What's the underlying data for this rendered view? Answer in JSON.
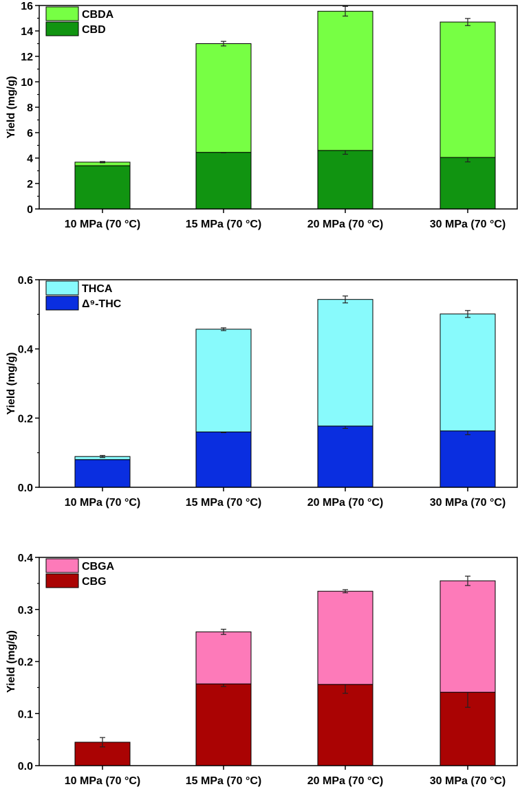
{
  "chart_data": [
    {
      "type": "bar",
      "stacked": true,
      "categories": [
        "10 MPa (70 °C)",
        "15 MPa (70 °C)",
        "20 MPa (70 °C)",
        "30 MPa (70 °C)"
      ],
      "ylabel": "Yield (mg/g)",
      "ylim": [
        0,
        16
      ],
      "yticks": [
        0,
        2,
        4,
        6,
        8,
        10,
        12,
        14,
        16
      ],
      "ytick_labels": [
        "0",
        "2",
        "4",
        "6",
        "8",
        "10",
        "12",
        "14",
        "16"
      ],
      "legend_position": "top-left",
      "series": [
        {
          "name": "CBD",
          "color": "#119411",
          "values": [
            3.4,
            4.45,
            4.6,
            4.05
          ],
          "errors": [
            null,
            0.03,
            0.3,
            0.35
          ]
        },
        {
          "name": "CBDA",
          "color": "#77ff44",
          "values": [
            0.28,
            8.55,
            10.95,
            10.65
          ],
          "errors": [
            0.05,
            0.18,
            0.38,
            0.28
          ]
        }
      ]
    },
    {
      "type": "bar",
      "stacked": true,
      "categories": [
        "10 MPa (70 °C)",
        "15 MPa (70 °C)",
        "20 MPa (70 °C)",
        "30 MPa (70 °C)"
      ],
      "ylabel": "Yield (mg/g)",
      "ylim": [
        0,
        0.6
      ],
      "yticks": [
        0,
        0.2,
        0.4,
        0.6
      ],
      "ytick_labels": [
        "0.0",
        "0.2",
        "0.4",
        "0.6"
      ],
      "legend_position": "top-left",
      "series": [
        {
          "name": "Δ⁹-THC",
          "color": "#0a2ee0",
          "values": [
            0.08,
            0.16,
            0.177,
            0.163
          ],
          "errors": [
            null,
            0.002,
            0.007,
            0.011
          ]
        },
        {
          "name": "THCA",
          "color": "#88fafc",
          "values": [
            0.009,
            0.297,
            0.366,
            0.338
          ],
          "errors": [
            0.003,
            0.004,
            0.01,
            0.01
          ]
        }
      ]
    },
    {
      "type": "bar",
      "stacked": true,
      "categories": [
        "10 MPa (70 °C)",
        "15 MPa (70 °C)",
        "20 MPa (70 °C)",
        "30 MPa (70 °C)"
      ],
      "ylabel": "Yield (mg/g)",
      "ylim": [
        0,
        0.4
      ],
      "yticks": [
        0,
        0.1,
        0.2,
        0.3,
        0.4
      ],
      "ytick_labels": [
        "0.0",
        "0.1",
        "0.2",
        "0.3",
        "0.4"
      ],
      "legend_position": "top-left",
      "series": [
        {
          "name": "CBG",
          "color": "#aa0303",
          "values": [
            0.045,
            0.157,
            0.156,
            0.141
          ],
          "errors": [
            0.009,
            0.005,
            0.017,
            0.029
          ]
        },
        {
          "name": "CBGA",
          "color": "#fd7ab9",
          "values": [
            0.0,
            0.1,
            0.179,
            0.214
          ],
          "errors": [
            null,
            0.005,
            0.003,
            0.009
          ]
        }
      ]
    }
  ]
}
